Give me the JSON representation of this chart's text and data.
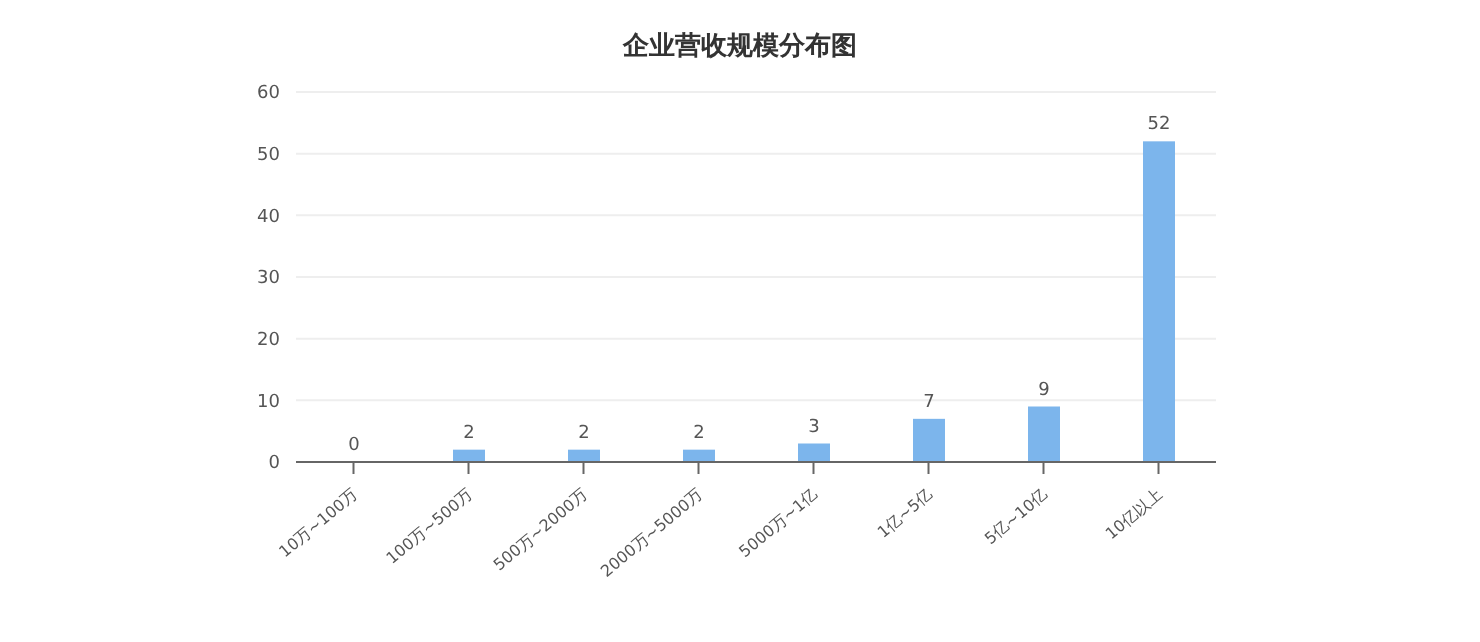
{
  "chart_data": {
    "type": "bar",
    "title": "企业营收规模分布图",
    "categories": [
      "10万~100万",
      "100万~500万",
      "500万~2000万",
      "2000万~5000万",
      "5000万~1亿",
      "1亿~5亿",
      "5亿~10亿",
      "10亿以上"
    ],
    "values": [
      0,
      2,
      2,
      2,
      3,
      7,
      9,
      52
    ],
    "color": "#7cb5ec",
    "ylim": [
      0,
      60
    ],
    "yticks": [
      0,
      10,
      20,
      30,
      40,
      50,
      60
    ],
    "grid": "y",
    "data_labels": true
  }
}
